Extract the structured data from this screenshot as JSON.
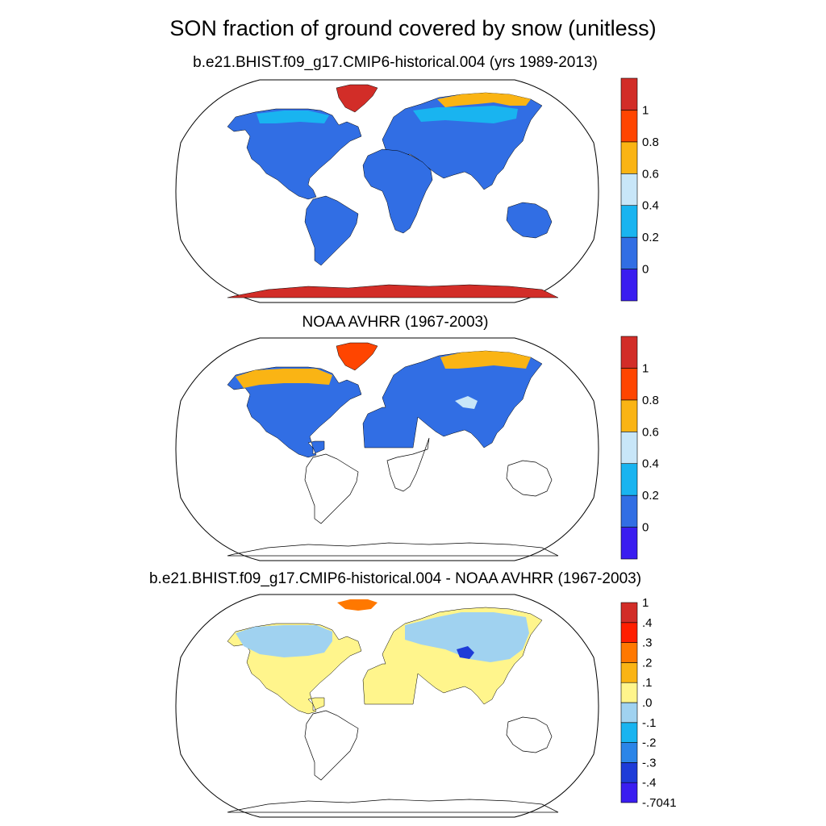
{
  "title": "SON fraction of ground covered by snow (unitless)",
  "chart_data": [
    {
      "type": "map",
      "title": "b.e21.BHIST.f09_g17.CMIP6-historical.004 (yrs 1989-2013)",
      "projection": "robinson",
      "colorbar": {
        "colors": [
          "#3a1df0",
          "#316ee4",
          "#19b4f0",
          "#c8e6f8",
          "#fab414",
          "#ff4500",
          "#d22d28"
        ],
        "tick_labels": [
          "0",
          "0.2",
          "0.4",
          "0.6",
          "0.8",
          "1"
        ]
      },
      "regions": [
        {
          "name": "land-base",
          "value": 0.0,
          "color": "#316ee4"
        },
        {
          "name": "greenland",
          "value": 1.0,
          "color": "#d22d28"
        },
        {
          "name": "antarctica",
          "value": 1.0,
          "color": "#d22d28"
        },
        {
          "name": "siberia-arctic",
          "value": 0.7,
          "color": "#fab414"
        },
        {
          "name": "eurasia-north",
          "value": 0.3,
          "color": "#19b4f0"
        },
        {
          "name": "canada-north",
          "value": 0.3,
          "color": "#19b4f0"
        }
      ]
    },
    {
      "type": "map",
      "title": "NOAA AVHRR (1967-2003)",
      "projection": "robinson",
      "colorbar": {
        "colors": [
          "#3a1df0",
          "#316ee4",
          "#19b4f0",
          "#c8e6f8",
          "#fab414",
          "#ff4500",
          "#d22d28"
        ],
        "tick_labels": [
          "0",
          "0.2",
          "0.4",
          "0.6",
          "0.8",
          "1"
        ]
      },
      "regions": [
        {
          "name": "land-base-north",
          "value": 0.0,
          "color": "#316ee4"
        },
        {
          "name": "greenland",
          "value": 1.0,
          "color": "#ff4500"
        },
        {
          "name": "siberia-arctic",
          "value": 0.7,
          "color": "#fab414"
        },
        {
          "name": "canada-arctic",
          "value": 0.7,
          "color": "#fab414"
        },
        {
          "name": "tibet",
          "value": 0.5,
          "color": "#c8e6f8"
        }
      ]
    },
    {
      "type": "map",
      "title": "b.e21.BHIST.f09_g17.CMIP6-historical.004 - NOAA AVHRR (1967-2003)",
      "projection": "robinson",
      "colorbar": {
        "colors": [
          "#3a1df0",
          "#1e3cd8",
          "#2b85e8",
          "#19b4f0",
          "#a0d2f0",
          "#fff58c",
          "#fab414",
          "#ff7800",
          "#ff1e00",
          "#d22d28"
        ],
        "tick_labels": [
          "-.7041",
          "-.4",
          "-.3",
          "-.2",
          "-.1",
          ".0",
          ".1",
          ".2",
          ".3",
          ".4",
          "1"
        ]
      },
      "regions": [
        {
          "name": "land-base-north",
          "value": 0.05,
          "color": "#fff58c"
        },
        {
          "name": "canada",
          "value": -0.1,
          "color": "#a0d2f0"
        },
        {
          "name": "eurasia",
          "value": -0.1,
          "color": "#a0d2f0"
        },
        {
          "name": "tibet",
          "value": -0.5,
          "color": "#1e3cd8"
        },
        {
          "name": "greenland-edge",
          "value": 0.3,
          "color": "#ff7800"
        }
      ]
    }
  ]
}
